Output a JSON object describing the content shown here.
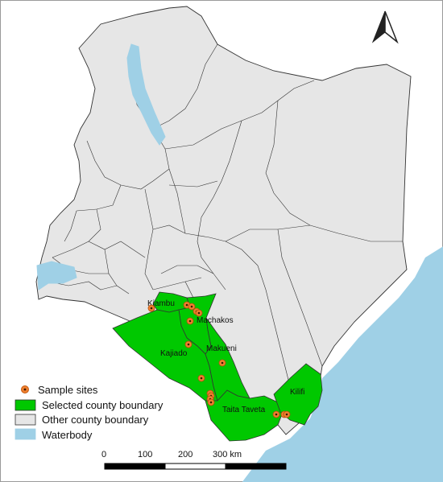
{
  "colors": {
    "other_county": "#e6e6e6",
    "selected_county": "#00c800",
    "waterbody": "#9fd0e6",
    "ocean": "#9fd0e6",
    "boundary": "#333333",
    "sample_site_fill": "#f08030",
    "sample_site_center": "#3a1a00"
  },
  "county_labels": {
    "kiambu": "Kiambu",
    "machakos": "Machakos",
    "kajiado": "Kajiado",
    "makueni": "Makueni",
    "taita_taveta": "Taita Taveta",
    "kilifi": "Kilifi"
  },
  "legend": {
    "sample_sites": "Sample sites",
    "selected_county": "Selected county boundary",
    "other_county": "Other county boundary",
    "waterbody": "Waterbody"
  },
  "scale_bar": {
    "tick_0": "0",
    "tick_100": "100",
    "tick_200": "200",
    "tick_300": "300 km"
  },
  "north_arrow_icon": "north-arrow-icon"
}
